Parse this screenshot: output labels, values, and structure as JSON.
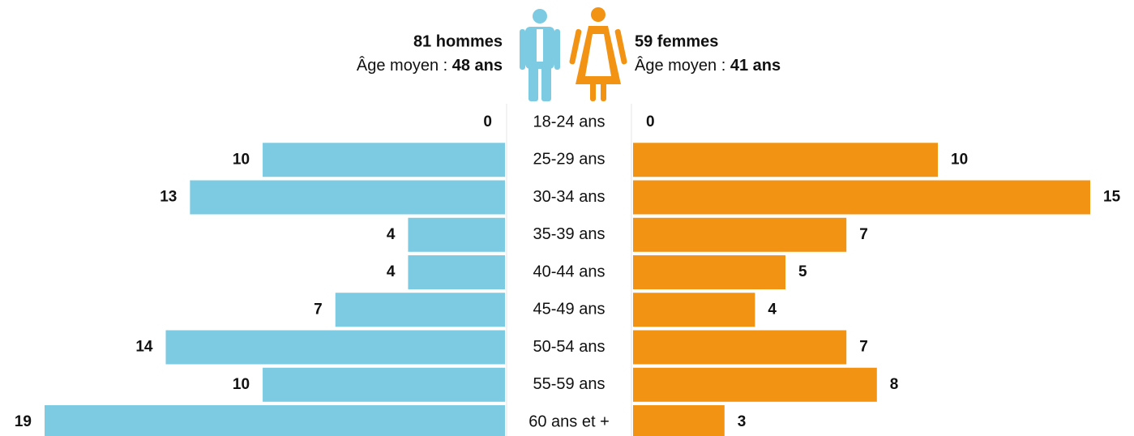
{
  "chart_data": {
    "type": "pyramid",
    "categories": [
      "18-24 ans",
      "25-29 ans",
      "30-34 ans",
      "35-39 ans",
      "40-44 ans",
      "45-49 ans",
      "50-54 ans",
      "55-59 ans",
      "60 ans et +"
    ],
    "series": [
      {
        "name": "81 hommes",
        "note": "Âge moyen : ",
        "note_value": "48 ans",
        "color": "#7ccbe2",
        "side": "left",
        "xlim": [
          0,
          19
        ],
        "values": [
          0,
          10,
          13,
          4,
          4,
          7,
          14,
          10,
          19
        ]
      },
      {
        "name": "59 femmes",
        "note": "Âge moyen : ",
        "note_value": "41 ans",
        "color": "#f29314",
        "side": "right",
        "xlim": [
          0,
          15
        ],
        "values": [
          0,
          10,
          15,
          7,
          5,
          4,
          7,
          8,
          3
        ]
      }
    ]
  }
}
